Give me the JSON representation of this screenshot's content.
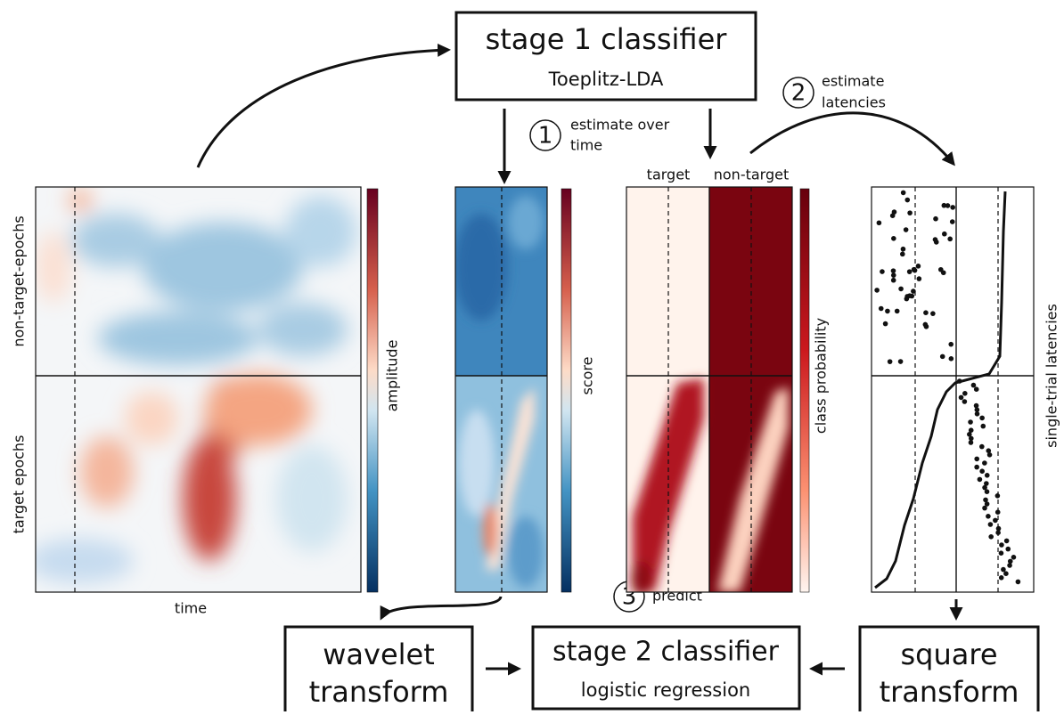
{
  "stage1": {
    "title": "stage 1 classifier",
    "subtitle": "Toeplitz-LDA"
  },
  "steps": [
    {
      "number": "1",
      "label_lines": [
        "estimate over",
        "time"
      ]
    },
    {
      "number": "2",
      "label_lines": [
        "estimate",
        "latencies"
      ]
    },
    {
      "number": "3",
      "label_lines": [
        "predict"
      ]
    }
  ],
  "panels": {
    "epochs": {
      "row_labels": [
        "non-target-epochs",
        "target epochs"
      ],
      "x_label": "time",
      "colorbar_label": "amplitude"
    },
    "scores": {
      "colorbar_label": "score"
    },
    "probabilities": {
      "column_labels": [
        "target",
        "non-target"
      ],
      "colorbar_label": "class probability"
    },
    "latencies": {
      "side_label": "single-trial latencies"
    }
  },
  "boxes": {
    "wavelet": {
      "lines": [
        "wavelet",
        "transform"
      ]
    },
    "stage2": {
      "title": "stage 2 classifier",
      "subtitle": "logistic regression"
    },
    "square": {
      "lines": [
        "square",
        "transform"
      ]
    }
  }
}
